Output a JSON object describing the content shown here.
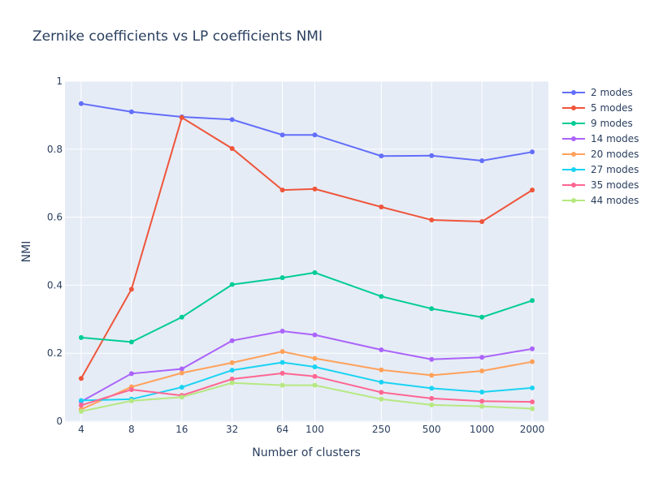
{
  "chart_data": {
    "type": "line",
    "title": "Zernike coefficients vs LP coefficients NMI",
    "xlabel": "Number of clusters",
    "ylabel": "NMI",
    "x_scale": "log",
    "x": [
      4,
      8,
      16,
      32,
      64,
      100,
      250,
      500,
      1000,
      2000
    ],
    "x_tick_labels": [
      "4",
      "8",
      "16",
      "32",
      "64",
      "100",
      "250",
      "500",
      "1000",
      "2000"
    ],
    "ylim": [
      0,
      1
    ],
    "y_ticks": [
      0,
      0.2,
      0.4,
      0.6,
      0.8,
      1
    ],
    "y_tick_labels": [
      "0",
      "0.2",
      "0.4",
      "0.6",
      "0.8",
      "1"
    ],
    "grid": true,
    "legend_position": "right",
    "series": [
      {
        "name": "2 modes",
        "color": "#636efa",
        "values": [
          0.934,
          0.91,
          0.895,
          0.887,
          0.842,
          0.842,
          0.78,
          0.781,
          0.766,
          0.792
        ]
      },
      {
        "name": "5 modes",
        "color": "#ef553b",
        "values": [
          0.126,
          0.388,
          0.893,
          0.802,
          0.68,
          0.683,
          0.63,
          0.592,
          0.587,
          0.68
        ]
      },
      {
        "name": "9 modes",
        "color": "#00cc96",
        "values": [
          0.246,
          0.233,
          0.306,
          0.402,
          0.422,
          0.437,
          0.367,
          0.331,
          0.306,
          0.355
        ]
      },
      {
        "name": "14 modes",
        "color": "#ab63fa",
        "values": [
          0.058,
          0.14,
          0.154,
          0.237,
          0.265,
          0.254,
          0.21,
          0.182,
          0.188,
          0.213
        ]
      },
      {
        "name": "20 modes",
        "color": "#ffa15a",
        "values": [
          0.035,
          0.101,
          0.142,
          0.172,
          0.205,
          0.185,
          0.151,
          0.135,
          0.148,
          0.175
        ]
      },
      {
        "name": "27 modes",
        "color": "#19d3f3",
        "values": [
          0.061,
          0.065,
          0.1,
          0.15,
          0.173,
          0.16,
          0.115,
          0.097,
          0.086,
          0.098
        ]
      },
      {
        "name": "35 modes",
        "color": "#ff6692",
        "values": [
          0.047,
          0.093,
          0.076,
          0.124,
          0.141,
          0.132,
          0.085,
          0.067,
          0.059,
          0.057
        ]
      },
      {
        "name": "44 modes",
        "color": "#b6e880",
        "values": [
          0.029,
          0.06,
          0.071,
          0.113,
          0.106,
          0.106,
          0.065,
          0.048,
          0.044,
          0.037
        ]
      }
    ]
  }
}
